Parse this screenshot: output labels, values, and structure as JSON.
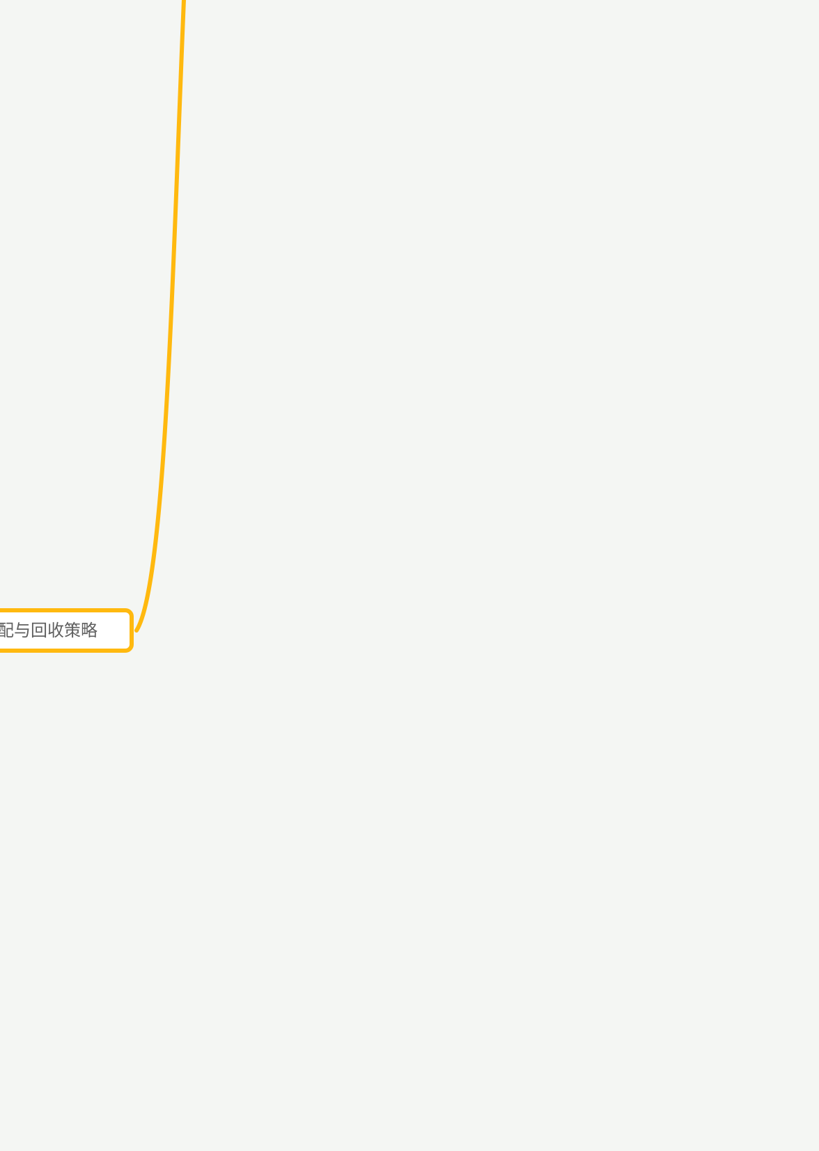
{
  "mindmap": {
    "branch_color": "#ffb90f",
    "node": {
      "label": "配与回收策略",
      "border_color": "#ffb90f",
      "background": "#ffffff",
      "text_color": "#5f5f5f"
    },
    "canvas": {
      "background": "#f4f6f3"
    }
  }
}
